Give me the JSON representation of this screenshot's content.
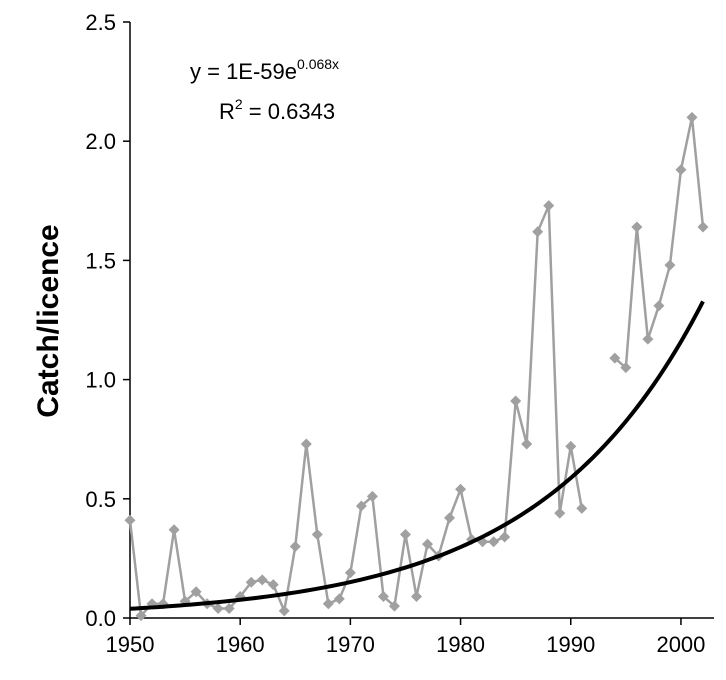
{
  "chart_data": {
    "type": "scatter",
    "title": "",
    "xlabel": "",
    "ylabel": "Catch/licence",
    "xlim": [
      1950,
      2003
    ],
    "ylim": [
      0,
      2.5
    ],
    "x_ticks": [
      "1950",
      "1960",
      "1970",
      "1980",
      "1990",
      "2000"
    ],
    "y_ticks": [
      "0.0",
      "0.5",
      "1.0",
      "1.5",
      "2.0",
      "2.5"
    ],
    "grid": false,
    "legend": "none",
    "series": [
      {
        "style": "line-markers",
        "color": "#a0a0a0",
        "segments": [
          {
            "x": [
              1950,
              1951,
              1952,
              1953,
              1954,
              1955,
              1956,
              1957,
              1958,
              1959,
              1960,
              1961,
              1962,
              1963,
              1964,
              1965,
              1966,
              1967,
              1968,
              1969,
              1970,
              1971,
              1972,
              1973,
              1974,
              1975,
              1976,
              1977,
              1978,
              1979,
              1980,
              1981,
              1982,
              1983,
              1984,
              1985,
              1986,
              1987,
              1988,
              1989,
              1990,
              1991
            ],
            "y": [
              0.41,
              0.01,
              0.06,
              0.06,
              0.37,
              0.07,
              0.11,
              0.06,
              0.04,
              0.04,
              0.09,
              0.15,
              0.16,
              0.14,
              0.03,
              0.3,
              0.73,
              0.35,
              0.06,
              0.08,
              0.19,
              0.47,
              0.51,
              0.09,
              0.05,
              0.35,
              0.09,
              0.31,
              0.26,
              0.42,
              0.54,
              0.33,
              0.32,
              0.32,
              0.34,
              0.91,
              0.73,
              1.62,
              1.73,
              0.44,
              0.72,
              0.46
            ]
          },
          {
            "x": [
              1994,
              1995,
              1996,
              1997,
              1998,
              1999,
              2000,
              2001,
              2002
            ],
            "y": [
              1.09,
              1.05,
              1.64,
              1.17,
              1.31,
              1.48,
              1.88,
              2.1,
              1.64
            ]
          }
        ]
      },
      {
        "style": "trendline",
        "color": "#000000",
        "model": "exponential",
        "a": 1e-59,
        "b": 0.068,
        "x_range": [
          1950,
          2002
        ]
      }
    ],
    "annotations": {
      "equation_prefix": "y = 1E-59e",
      "equation_exp": "0.068x",
      "r2_prefix": "R",
      "r2_exp": "2",
      "r2_suffix": " = 0.6343"
    }
  }
}
